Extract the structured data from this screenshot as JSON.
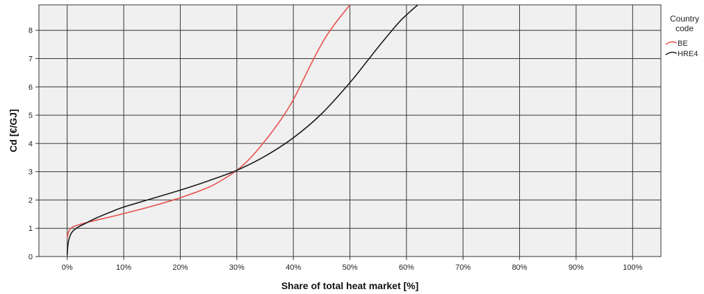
{
  "chart_data": {
    "type": "line",
    "title": "",
    "xlabel": "Share of total heat market [%]",
    "ylabel": "Cd [€/GJ]",
    "xlim": [
      -5,
      105
    ],
    "ylim": [
      0,
      8.9
    ],
    "x_ticks": [
      0,
      10,
      20,
      30,
      40,
      50,
      60,
      70,
      80,
      90,
      100
    ],
    "x_tick_labels": [
      "0%",
      "10%",
      "20%",
      "30%",
      "40%",
      "50%",
      "60%",
      "70%",
      "80%",
      "90%",
      "100%"
    ],
    "y_ticks": [
      0,
      1,
      2,
      3,
      4,
      5,
      6,
      7,
      8
    ],
    "y_tick_labels": [
      "0",
      "1",
      "2",
      "3",
      "4",
      "5",
      "6",
      "7",
      "8"
    ],
    "grid": true,
    "legend": {
      "title": [
        "Country",
        "code"
      ],
      "position": "right"
    },
    "series": [
      {
        "name": "BE",
        "color": "#e8504a",
        "x": [
          0,
          0.2,
          0.6,
          1,
          2,
          3,
          5,
          8,
          10,
          15,
          20,
          25,
          28,
          30,
          32,
          34,
          36,
          38,
          40,
          42,
          44,
          46,
          48,
          50
        ],
        "y": [
          0.65,
          0.85,
          0.98,
          1.05,
          1.12,
          1.18,
          1.28,
          1.42,
          1.52,
          1.78,
          2.08,
          2.45,
          2.78,
          3.05,
          3.4,
          3.85,
          4.35,
          4.9,
          5.55,
          6.35,
          7.15,
          7.85,
          8.4,
          8.9
        ]
      },
      {
        "name": "HRE4",
        "color": "#1a1a1a",
        "x": [
          0,
          0.1,
          0.3,
          0.6,
          1,
          1.5,
          2,
          3,
          5,
          8,
          10,
          15,
          20,
          25,
          30,
          35,
          40,
          45,
          50,
          53,
          56,
          59,
          62
        ],
        "y": [
          0.05,
          0.35,
          0.6,
          0.78,
          0.9,
          0.98,
          1.05,
          1.15,
          1.35,
          1.6,
          1.75,
          2.05,
          2.35,
          2.68,
          3.05,
          3.55,
          4.2,
          5.05,
          6.15,
          6.9,
          7.65,
          8.35,
          8.9
        ]
      }
    ]
  }
}
